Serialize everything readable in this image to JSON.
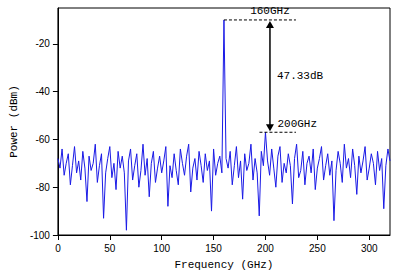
{
  "chart_data": {
    "type": "line",
    "x_label": "Frequency (GHz)",
    "y_label": "Power (dBm)",
    "color": "#1a1ae6",
    "grid": false,
    "xlim": [
      0,
      320
    ],
    "xticks": [
      0,
      50,
      100,
      150,
      200,
      250,
      300
    ],
    "ylim": [
      -100,
      -5
    ],
    "yticks": [
      -100,
      -80,
      -60,
      -40,
      -20
    ],
    "annotations": [
      {
        "text": "160GHz",
        "x": 160,
        "y": -10
      },
      {
        "text": "200GHz",
        "x": 200,
        "y": -57
      },
      {
        "text": "47.33dB"
      }
    ],
    "x": [
      0,
      2,
      4,
      6,
      8,
      10,
      12,
      14,
      16,
      18,
      20,
      22,
      24,
      26,
      28,
      30,
      32,
      34,
      36,
      38,
      40,
      42,
      44,
      46,
      48,
      50,
      52,
      54,
      56,
      58,
      60,
      62,
      64,
      66,
      68,
      70,
      72,
      74,
      76,
      78,
      80,
      82,
      84,
      86,
      88,
      90,
      92,
      94,
      96,
      98,
      100,
      102,
      104,
      106,
      108,
      110,
      112,
      114,
      116,
      118,
      120,
      122,
      124,
      126,
      128,
      130,
      132,
      134,
      136,
      138,
      140,
      142,
      144,
      146,
      148,
      150,
      152,
      154,
      156,
      158,
      160,
      162,
      164,
      166,
      168,
      170,
      172,
      174,
      176,
      178,
      180,
      182,
      184,
      186,
      188,
      190,
      192,
      194,
      196,
      198,
      200,
      202,
      204,
      206,
      208,
      210,
      212,
      214,
      216,
      218,
      220,
      222,
      224,
      226,
      228,
      230,
      232,
      234,
      236,
      238,
      240,
      242,
      244,
      246,
      248,
      250,
      252,
      254,
      256,
      258,
      260,
      262,
      264,
      266,
      268,
      270,
      272,
      274,
      276,
      278,
      280,
      282,
      284,
      286,
      288,
      290,
      292,
      294,
      296,
      298,
      300,
      302,
      304,
      306,
      308,
      310,
      312,
      314,
      316,
      318,
      320
    ],
    "values": [
      -68,
      -72,
      -64,
      -75,
      -70,
      -66,
      -79,
      -71,
      -63,
      -74,
      -69,
      -77,
      -65,
      -72,
      -86,
      -67,
      -73,
      -70,
      -62,
      -78,
      -71,
      -66,
      -93,
      -74,
      -68,
      -63,
      -76,
      -70,
      -81,
      -65,
      -72,
      -67,
      -74,
      -98,
      -69,
      -64,
      -77,
      -71,
      -66,
      -80,
      -73,
      -62,
      -75,
      -68,
      -84,
      -70,
      -65,
      -78,
      -72,
      -67,
      -74,
      -69,
      -63,
      -88,
      -71,
      -76,
      -66,
      -73,
      -79,
      -64,
      -70,
      -75,
      -67,
      -62,
      -82,
      -72,
      -68,
      -77,
      -65,
      -71,
      -78,
      -66,
      -73,
      -69,
      -90,
      -64,
      -75,
      -70,
      -67,
      -74,
      -10,
      -68,
      -72,
      -65,
      -79,
      -71,
      -63,
      -76,
      -69,
      -85,
      -66,
      -73,
      -70,
      -62,
      -77,
      -68,
      -74,
      -92,
      -65,
      -71,
      -57,
      -69,
      -75,
      -64,
      -72,
      -80,
      -67,
      -63,
      -78,
      -70,
      -74,
      -66,
      -71,
      -87,
      -68,
      -62,
      -76,
      -73,
      -65,
      -79,
      -70,
      -67,
      -74,
      -64,
      -81,
      -72,
      -68,
      -63,
      -77,
      -71,
      -66,
      -75,
      -69,
      -94,
      -73,
      -65,
      -70,
      -78,
      -62,
      -72,
      -68,
      -76,
      -64,
      -71,
      -83,
      -67,
      -74,
      -69,
      -63,
      -77,
      -72,
      -66,
      -70,
      -79,
      -65,
      -73,
      -68,
      -89,
      -71,
      -64,
      -69
    ]
  }
}
